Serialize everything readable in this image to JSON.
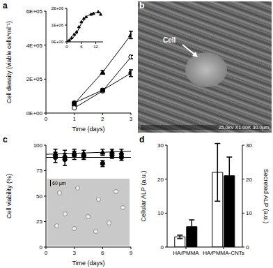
{
  "chart_data": [
    {
      "type": "scatter",
      "title": "a",
      "x_label": "Time (days)",
      "y_label": "Cell density (viable cells*ml⁻¹)",
      "xlim": [
        0,
        3
      ],
      "xticks": [
        0,
        1,
        2,
        3
      ],
      "ylim": [
        0,
        600000
      ],
      "yticks": [
        {
          "value": 0,
          "label": "0E+00"
        },
        {
          "value": 200000,
          "label": "2E+05"
        },
        {
          "value": 400000,
          "label": "4E+05"
        },
        {
          "value": 600000,
          "label": "6E+05"
        }
      ],
      "series": [
        {
          "marker": "triangle",
          "color": "#000000",
          "line_style": "solid",
          "x": [
            1,
            2,
            3
          ],
          "values": [
            55000,
            240000,
            460000
          ],
          "error": [
            5000,
            10000,
            22000
          ]
        },
        {
          "marker": "open_circle",
          "color": "#000000",
          "line_style": "solid",
          "x": [
            1,
            2,
            3
          ],
          "values": [
            30000,
            130000,
            330000
          ],
          "error": [
            3000,
            8000,
            10000
          ]
        },
        {
          "marker": "circle",
          "color": "#000000",
          "line_style": "solid",
          "x": [
            1,
            2,
            3
          ],
          "values": [
            60000,
            135000,
            235000
          ],
          "error": [
            5000,
            8000,
            20000
          ]
        }
      ]
    },
    {
      "type": "scatter",
      "xlim": [
        0,
        15
      ],
      "xticks": [
        0,
        6,
        12
      ],
      "ylim": [
        0,
        2000000
      ],
      "yticks": [
        {
          "value": 0,
          "label": "0E+00"
        },
        {
          "value": 1000000,
          "label": "1E+06"
        },
        {
          "value": 2000000,
          "label": "2E+06"
        }
      ],
      "series": [
        {
          "marker": "triangle",
          "color": "#000000",
          "x": [
            0,
            1,
            2,
            3,
            4,
            5,
            6,
            7,
            8,
            10,
            11,
            13,
            14
          ],
          "values": [
            50000,
            100000,
            250000,
            450000,
            600000,
            900000,
            1200000,
            1400000,
            1500000,
            1650000,
            1700000,
            1800000,
            1650000
          ]
        },
        {
          "type": "line",
          "marker": "none",
          "line_style": "solid",
          "color": "#000000",
          "x": [
            0,
            2,
            4,
            6,
            8,
            10,
            12,
            14
          ],
          "values": [
            30000,
            150000,
            500000,
            1100000,
            1500000,
            1680000,
            1740000,
            1760000
          ]
        }
      ]
    },
    {
      "type": "image",
      "title": "b",
      "annotations": [
        "Cell",
        "25.0kV X1.00K 30.0µm"
      ]
    },
    {
      "type": "scatter",
      "title": "c",
      "x_label": "Time (days)",
      "y_label": "Cell viability (%)",
      "xlim": [
        0,
        9
      ],
      "xticks": [
        0,
        3,
        6,
        9
      ],
      "ylim": [
        0,
        100
      ],
      "yticks": [
        0,
        25,
        50,
        75,
        100
      ],
      "annotations": [
        "60 µm"
      ],
      "series": [
        {
          "marker": "triangle",
          "color": "#000000",
          "x": [
            1,
            2,
            3,
            4,
            6,
            7,
            8
          ],
          "values": [
            92,
            90,
            93,
            92,
            93,
            94,
            93
          ],
          "error": [
            4,
            5,
            3,
            3,
            3,
            2,
            3
          ]
        },
        {
          "marker": "circle",
          "color": "#000000",
          "x": [
            1,
            2,
            3,
            4,
            6,
            7,
            8
          ],
          "values": [
            88,
            86,
            90,
            89,
            82,
            90,
            88
          ],
          "error": [
            5,
            6,
            4,
            3,
            3,
            3,
            3
          ]
        },
        {
          "type": "line",
          "marker": "none",
          "line_style": "solid",
          "color": "#000000",
          "x": [
            0,
            9
          ],
          "values": [
            91,
            94
          ]
        },
        {
          "type": "line",
          "marker": "none",
          "line_style": "solid",
          "color": "#000000",
          "x": [
            0,
            9
          ],
          "values": [
            88,
            88
          ]
        }
      ]
    },
    {
      "type": "bar",
      "title": "d",
      "categories": [
        "HA/PMMA",
        "HA/PMMA-CNTs"
      ],
      "y_label": "Cellular ALP (a.u.)",
      "y2_label": "Secreted ALP (a.u.)",
      "ylim": [
        0,
        30
      ],
      "yticks": [
        0,
        10,
        20,
        30
      ],
      "y2lim": [
        0,
        30
      ],
      "y2ticks": [
        0,
        10,
        20,
        30
      ],
      "series": [
        {
          "color": "#ffffff",
          "values": [
            3,
            22
          ],
          "error": [
            0.5,
            8.5
          ]
        },
        {
          "color": "#000000",
          "axis": "y2",
          "values": [
            6,
            21
          ],
          "error": [
            2,
            5.5
          ]
        }
      ]
    }
  ]
}
